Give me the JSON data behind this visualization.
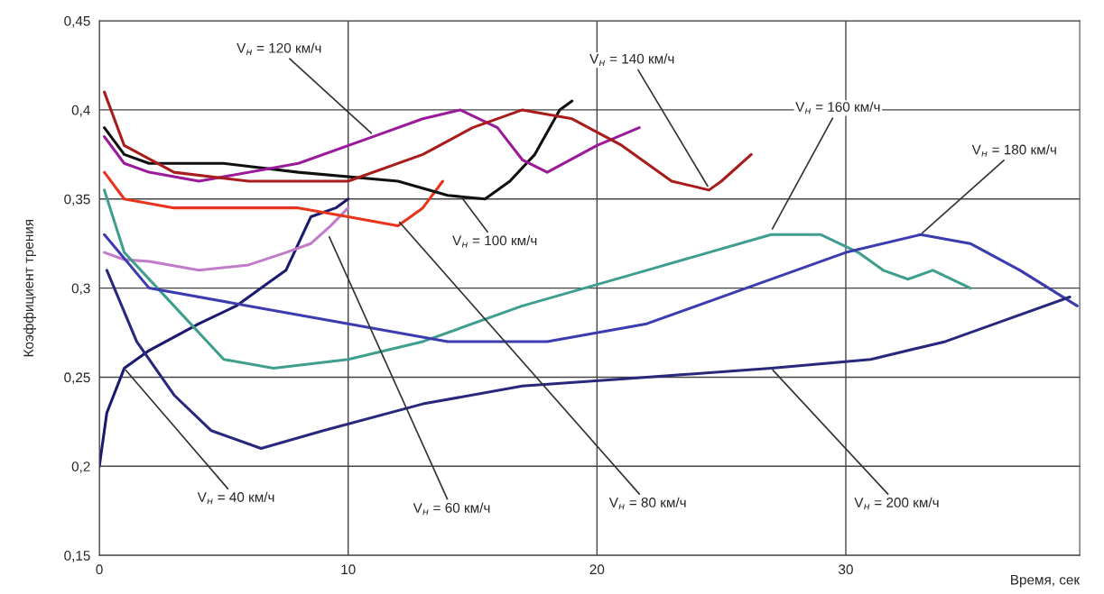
{
  "chart_data": {
    "type": "line",
    "xlabel": "Время, сек",
    "ylabel": "Коэффициент трения",
    "xlim": [
      0,
      39.4
    ],
    "ylim": [
      0.15,
      0.45
    ],
    "xticks": [
      0,
      10,
      20,
      30
    ],
    "yticks": [
      {
        "value": 0.15,
        "label": "0,15"
      },
      {
        "value": 0.2,
        "label": "0,2"
      },
      {
        "value": 0.25,
        "label": "0,25"
      },
      {
        "value": 0.3,
        "label": "0,3"
      },
      {
        "value": 0.35,
        "label": "0,35"
      },
      {
        "value": 0.4,
        "label": "0,4"
      },
      {
        "value": 0.45,
        "label": "0,45"
      }
    ],
    "grid": true,
    "legend": false,
    "marker": "none",
    "line_style": "solid",
    "series": [
      {
        "color": "#1a1a6e",
        "x": [
          0,
          0.3,
          1,
          2,
          4,
          5.5,
          6.5,
          7.5,
          8.5,
          9.5,
          10
        ],
        "values": [
          0.2,
          0.23,
          0.255,
          0.265,
          0.28,
          0.29,
          0.3,
          0.31,
          0.34,
          0.345,
          0.35
        ]
      },
      {
        "color": "#c07cc8",
        "x": [
          0.2,
          1,
          2,
          4,
          6,
          7.5,
          8.5,
          9.3,
          10
        ],
        "values": [
          0.32,
          0.316,
          0.315,
          0.31,
          0.313,
          0.32,
          0.325,
          0.335,
          0.345
        ]
      },
      {
        "color": "#e8341c",
        "x": [
          0.2,
          1,
          3,
          6,
          8,
          10,
          12,
          13,
          13.8
        ],
        "values": [
          0.365,
          0.35,
          0.345,
          0.345,
          0.345,
          0.34,
          0.335,
          0.345,
          0.36
        ]
      },
      {
        "color": "#101010",
        "x": [
          0.2,
          1,
          2,
          5,
          8,
          12,
          14,
          15.5,
          16.5,
          17.5,
          18.5,
          19
        ],
        "values": [
          0.39,
          0.375,
          0.37,
          0.37,
          0.365,
          0.36,
          0.352,
          0.35,
          0.36,
          0.375,
          0.4,
          0.405
        ]
      },
      {
        "color": "#9a1a9a",
        "x": [
          0.2,
          1,
          2,
          4,
          8,
          11,
          13,
          14.5,
          16,
          17,
          18,
          20,
          21.7
        ],
        "values": [
          0.385,
          0.37,
          0.365,
          0.36,
          0.37,
          0.385,
          0.395,
          0.4,
          0.39,
          0.372,
          0.365,
          0.38,
          0.39
        ]
      },
      {
        "color": "#a81c1c",
        "x": [
          0.2,
          1,
          3,
          6,
          10,
          13,
          15,
          17,
          19,
          21,
          23,
          24.5,
          25,
          26.2
        ],
        "values": [
          0.41,
          0.38,
          0.365,
          0.36,
          0.36,
          0.375,
          0.39,
          0.4,
          0.395,
          0.38,
          0.36,
          0.355,
          0.36,
          0.375
        ]
      },
      {
        "color": "#3f9e8e",
        "x": [
          0.2,
          1,
          3,
          5,
          7,
          10,
          13,
          17,
          22,
          27,
          29,
          30.5,
          31.5,
          32.5,
          33.5,
          35
        ],
        "values": [
          0.355,
          0.32,
          0.29,
          0.26,
          0.255,
          0.26,
          0.27,
          0.29,
          0.31,
          0.33,
          0.33,
          0.32,
          0.31,
          0.305,
          0.31,
          0.3
        ]
      },
      {
        "color": "#3c3cb0",
        "x": [
          0.2,
          2,
          6,
          10,
          14,
          18,
          22,
          26,
          30,
          33,
          35,
          37,
          39.3
        ],
        "values": [
          0.33,
          0.3,
          0.29,
          0.28,
          0.27,
          0.27,
          0.28,
          0.3,
          0.32,
          0.33,
          0.325,
          0.31,
          0.29
        ]
      },
      {
        "color": "#28287c",
        "x": [
          0.3,
          1.5,
          3,
          4.5,
          6.5,
          9,
          13,
          17,
          22,
          27,
          31,
          34,
          36,
          39
        ],
        "values": [
          0.31,
          0.27,
          0.24,
          0.22,
          0.21,
          0.22,
          0.235,
          0.245,
          0.25,
          0.255,
          0.26,
          0.27,
          0.28,
          0.295
        ]
      }
    ],
    "annotations": [
      {
        "text": "V$_{н}$ = 40 км/ч",
        "x": 1,
        "y": 0.255
      },
      {
        "text": "V$_{н}$ = 60 км/ч",
        "x": 9.2,
        "y": 0.33
      },
      {
        "text": "V$_{н}$ = 80 км/ч",
        "x": 12,
        "y": 0.338
      },
      {
        "text": "V$_{н}$ = 100 км/ч",
        "x": 14.5,
        "y": 0.352
      },
      {
        "text": "V$_{н}$ = 120 км/ч",
        "x": 11,
        "y": 0.386
      },
      {
        "text": "V$_{н}$ = 140 км/ч",
        "x": 24.5,
        "y": 0.356
      },
      {
        "text": "V$_{н}$ = 160 км/ч",
        "x": 27,
        "y": 0.332
      },
      {
        "text": "V$_{н}$ = 180 км/ч",
        "x": 33,
        "y": 0.33
      },
      {
        "text": "V$_{н}$ = 200 км/ч",
        "x": 27,
        "y": 0.255
      }
    ]
  }
}
